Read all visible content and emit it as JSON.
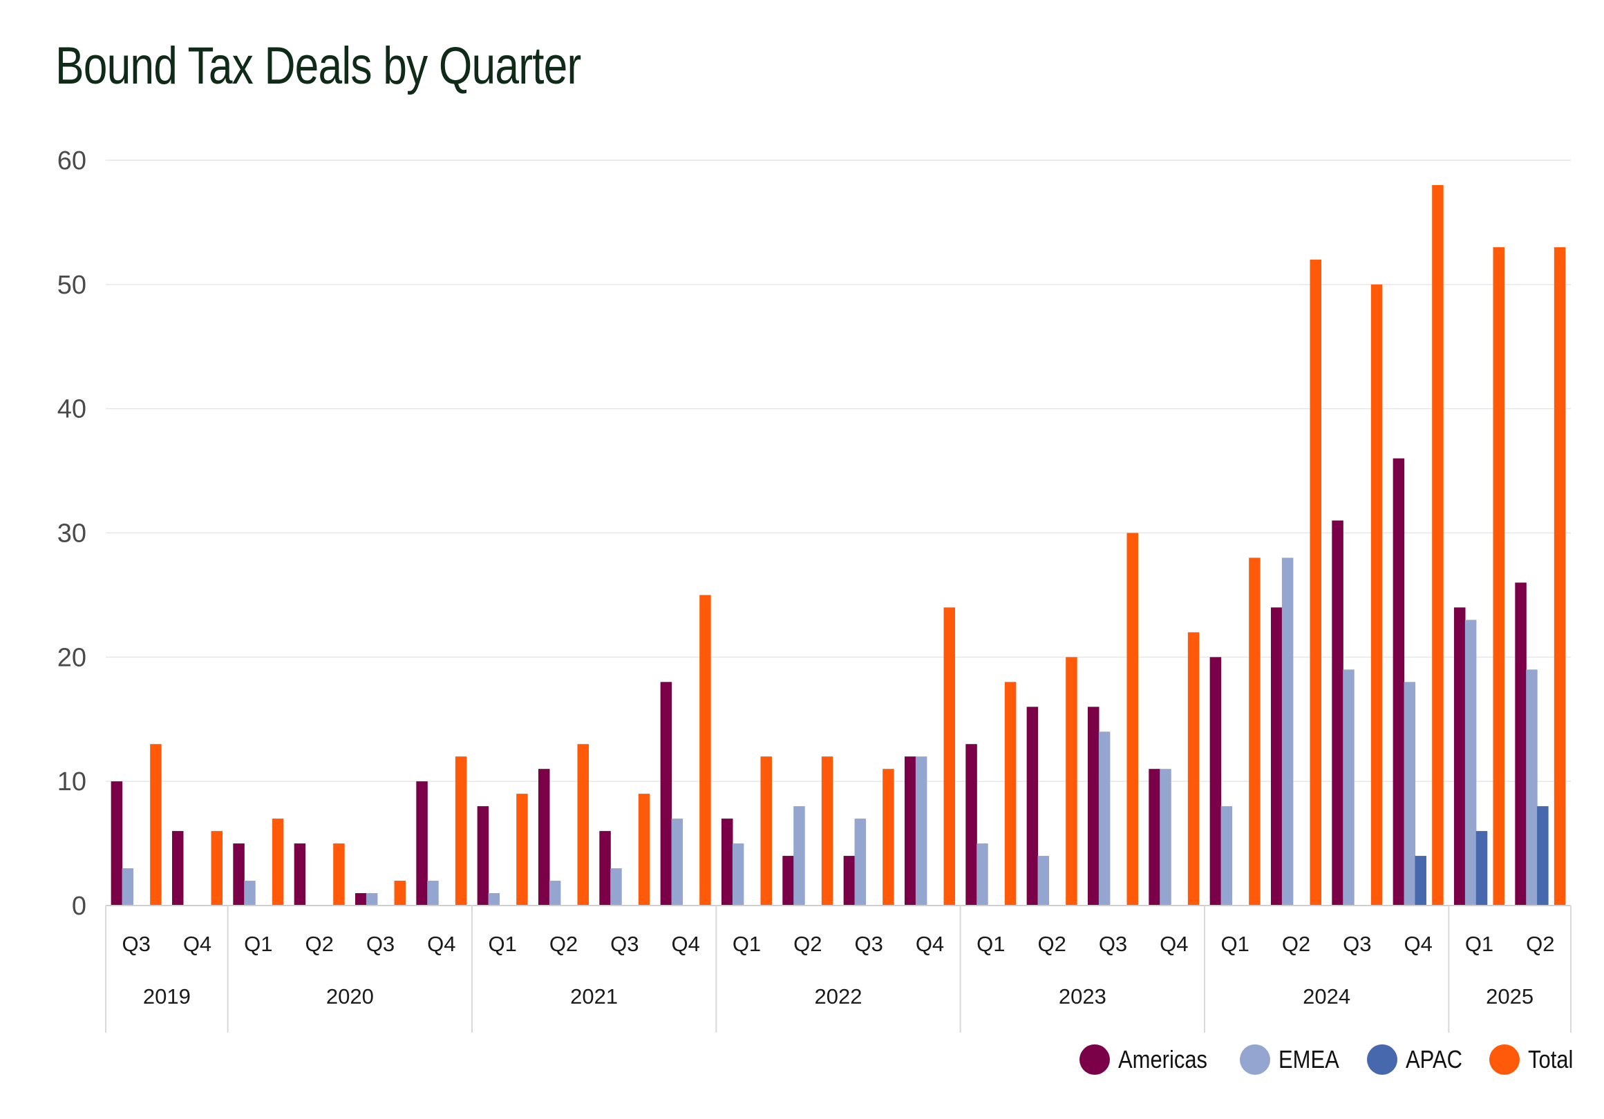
{
  "chart_data": {
    "type": "bar",
    "title": "Bound Tax Deals by Quarter",
    "xlabel": "",
    "ylabel": "",
    "ylim": [
      0,
      60
    ],
    "yticks": [
      0,
      10,
      20,
      30,
      40,
      50,
      60
    ],
    "grid": true,
    "legend_position": "bottom-right",
    "groups": [
      {
        "year": "2019",
        "quarters": [
          "Q3",
          "Q4"
        ]
      },
      {
        "year": "2020",
        "quarters": [
          "Q1",
          "Q2",
          "Q3",
          "Q4"
        ]
      },
      {
        "year": "2021",
        "quarters": [
          "Q1",
          "Q2",
          "Q3",
          "Q4"
        ]
      },
      {
        "year": "2022",
        "quarters": [
          "Q1",
          "Q2",
          "Q3",
          "Q4"
        ]
      },
      {
        "year": "2023",
        "quarters": [
          "Q1",
          "Q2",
          "Q3",
          "Q4"
        ]
      },
      {
        "year": "2024",
        "quarters": [
          "Q1",
          "Q2",
          "Q3",
          "Q4"
        ]
      },
      {
        "year": "2025",
        "quarters": [
          "Q1",
          "Q2"
        ]
      }
    ],
    "categories": [
      "2019 Q3",
      "2019 Q4",
      "2020 Q1",
      "2020 Q2",
      "2020 Q3",
      "2020 Q4",
      "2021 Q1",
      "2021 Q2",
      "2021 Q3",
      "2021 Q4",
      "2022 Q1",
      "2022 Q2",
      "2022 Q3",
      "2022 Q4",
      "2023 Q1",
      "2023 Q2",
      "2023 Q3",
      "2023 Q4",
      "2024 Q1",
      "2024 Q2",
      "2024 Q3",
      "2024 Q4",
      "2025 Q1",
      "2025 Q2"
    ],
    "series": [
      {
        "name": "Americas",
        "color": "#7a0048",
        "values": [
          10,
          6,
          5,
          5,
          1,
          10,
          8,
          11,
          6,
          18,
          7,
          4,
          4,
          12,
          13,
          16,
          16,
          11,
          20,
          24,
          31,
          36,
          24,
          26
        ]
      },
      {
        "name": "EMEA",
        "color": "#94a6d0",
        "values": [
          3,
          0,
          2,
          0,
          1,
          2,
          1,
          2,
          3,
          7,
          5,
          8,
          7,
          12,
          5,
          4,
          14,
          11,
          8,
          28,
          19,
          18,
          23,
          19
        ]
      },
      {
        "name": "APAC",
        "color": "#4768ad",
        "values": [
          0,
          0,
          0,
          0,
          0,
          0,
          0,
          0,
          0,
          0,
          0,
          0,
          0,
          0,
          0,
          0,
          0,
          0,
          0,
          0,
          0,
          4,
          6,
          8
        ]
      },
      {
        "name": "Total",
        "color": "#ff5a0a",
        "values": [
          13,
          6,
          7,
          5,
          2,
          12,
          9,
          13,
          9,
          25,
          12,
          12,
          11,
          24,
          18,
          20,
          30,
          22,
          28,
          52,
          50,
          58,
          53,
          53
        ]
      }
    ]
  }
}
